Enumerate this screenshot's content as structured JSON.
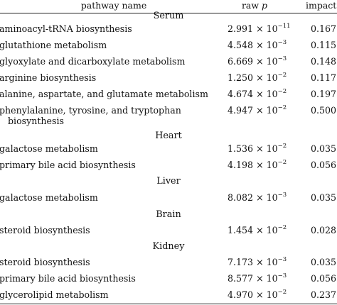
{
  "header": {
    "pathway_name": "pathway name",
    "raw_p_prefix": "raw ",
    "raw_p_var": "p",
    "impact": "impact"
  },
  "sections": [
    {
      "label": "Serum",
      "rows": [
        {
          "name": "aminoacyl-tRNA biosynthesis",
          "name2": "",
          "mantissa": "2.991",
          "exponent": "−11",
          "impact": "0.167"
        },
        {
          "name": "glutathione metabolism",
          "name2": "",
          "mantissa": "4.548",
          "exponent": "−3",
          "impact": "0.115"
        },
        {
          "name": "glyoxylate and dicarboxylate metabolism",
          "name2": "",
          "mantissa": "6.669",
          "exponent": "−3",
          "impact": "0.148"
        },
        {
          "name": "arginine biosynthesis",
          "name2": "",
          "mantissa": "1.250",
          "exponent": "−2",
          "impact": "0.117"
        },
        {
          "name": "alanine, aspartate, and glutamate metabolism",
          "name2": "",
          "mantissa": "4.674",
          "exponent": "−2",
          "impact": "0.197"
        },
        {
          "name": "phenylalanine, tyrosine, and tryptophan",
          "name2": "biosynthesis",
          "mantissa": "4.947",
          "exponent": "−2",
          "impact": "0.500"
        }
      ]
    },
    {
      "label": "Heart",
      "rows": [
        {
          "name": "galactose metabolism",
          "name2": "",
          "mantissa": "1.536",
          "exponent": "−2",
          "impact": "0.035"
        },
        {
          "name": "primary bile acid biosynthesis",
          "name2": "",
          "mantissa": "4.198",
          "exponent": "−2",
          "impact": "0.056"
        }
      ]
    },
    {
      "label": "Liver",
      "rows": [
        {
          "name": "galactose metabolism",
          "name2": "",
          "mantissa": "8.082",
          "exponent": "−3",
          "impact": "0.035"
        }
      ]
    },
    {
      "label": "Brain",
      "rows": [
        {
          "name": "steroid biosynthesis",
          "name2": "",
          "mantissa": "1.454",
          "exponent": "−2",
          "impact": "0.028"
        }
      ]
    },
    {
      "label": "Kidney",
      "rows": [
        {
          "name": "steroid biosynthesis",
          "name2": "",
          "mantissa": "7.173",
          "exponent": "−3",
          "impact": "0.035"
        },
        {
          "name": "primary bile acid biosynthesis",
          "name2": "",
          "mantissa": "8.577",
          "exponent": "−3",
          "impact": "0.056"
        },
        {
          "name": "glycerolipid metabolism",
          "name2": "",
          "mantissa": "4.970",
          "exponent": "−2",
          "impact": "0.237"
        }
      ]
    }
  ],
  "times_symbol": " × 10",
  "colors": {
    "text": "#111111",
    "rule": "#222222",
    "background": "#ffffff"
  }
}
